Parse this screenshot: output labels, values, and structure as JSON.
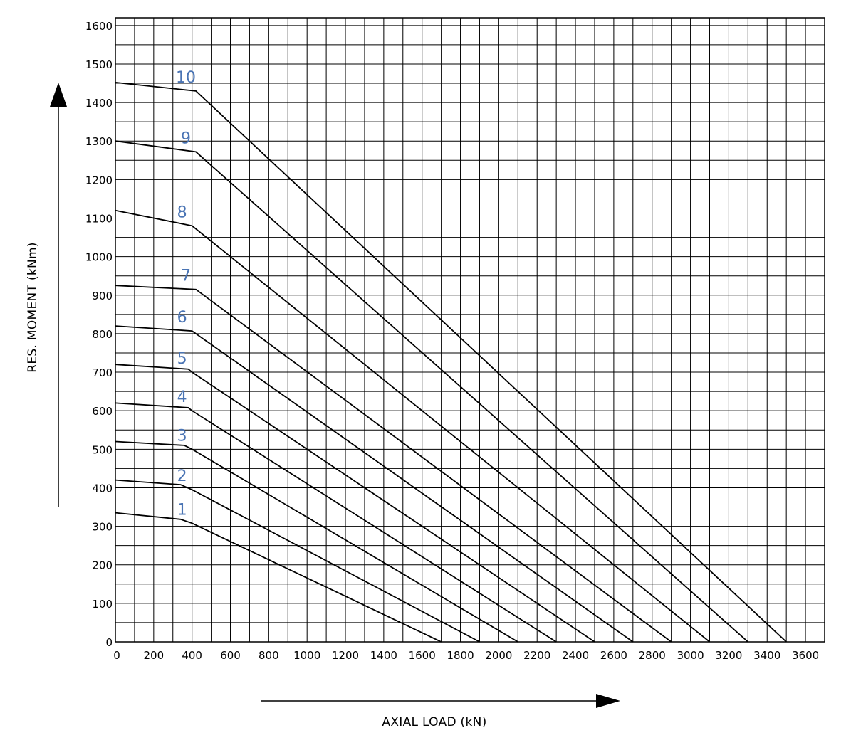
{
  "chart_data": {
    "type": "line",
    "xlabel": "AXIAL LOAD (kN)",
    "ylabel": "RES. MOMENT (kNm)",
    "xlim": [
      0,
      3700
    ],
    "ylim": [
      0,
      1620
    ],
    "x_ticks": [
      0,
      200,
      400,
      600,
      800,
      1000,
      1200,
      1400,
      1600,
      1800,
      2000,
      2200,
      2400,
      2600,
      2800,
      3000,
      3200,
      3400,
      3600
    ],
    "y_ticks": [
      0,
      100,
      200,
      300,
      400,
      500,
      600,
      700,
      800,
      900,
      1000,
      1100,
      1200,
      1300,
      1400,
      1500,
      1600
    ],
    "grid": true,
    "series": [
      {
        "name": "1",
        "points": [
          [
            0,
            335
          ],
          [
            340,
            318
          ],
          [
            400,
            308
          ],
          [
            1700,
            0
          ]
        ]
      },
      {
        "name": "2",
        "points": [
          [
            0,
            420
          ],
          [
            340,
            408
          ],
          [
            400,
            395
          ],
          [
            1900,
            0
          ]
        ]
      },
      {
        "name": "3",
        "points": [
          [
            0,
            520
          ],
          [
            360,
            510
          ],
          [
            400,
            500
          ],
          [
            2100,
            0
          ]
        ]
      },
      {
        "name": "4",
        "points": [
          [
            0,
            620
          ],
          [
            380,
            608
          ],
          [
            400,
            600
          ],
          [
            2300,
            0
          ]
        ]
      },
      {
        "name": "5",
        "points": [
          [
            0,
            720
          ],
          [
            380,
            708
          ],
          [
            400,
            700
          ],
          [
            2500,
            0
          ]
        ]
      },
      {
        "name": "6",
        "points": [
          [
            0,
            820
          ],
          [
            400,
            807
          ],
          [
            2700,
            0
          ]
        ]
      },
      {
        "name": "7",
        "points": [
          [
            0,
            925
          ],
          [
            420,
            915
          ],
          [
            2900,
            0
          ]
        ]
      },
      {
        "name": "8",
        "points": [
          [
            0,
            1120
          ],
          [
            400,
            1080
          ],
          [
            3100,
            0
          ]
        ]
      },
      {
        "name": "9",
        "points": [
          [
            0,
            1300
          ],
          [
            420,
            1272
          ],
          [
            3300,
            0
          ]
        ]
      },
      {
        "name": "10",
        "points": [
          [
            0,
            1452
          ],
          [
            420,
            1430
          ],
          [
            3500,
            0
          ]
        ]
      }
    ]
  }
}
